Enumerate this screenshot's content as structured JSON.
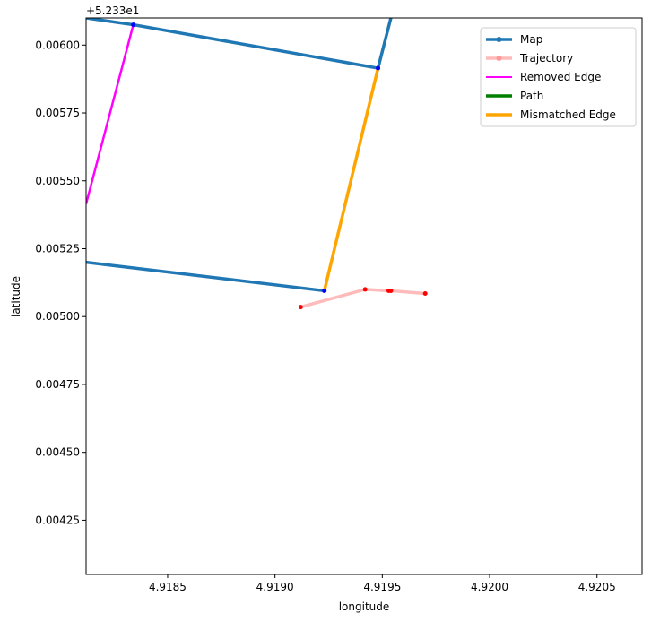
{
  "chart_data": {
    "type": "line",
    "xlabel": "longitude",
    "ylabel": "latitude",
    "y_offset_label": "+5.233e1",
    "xlim": [
      4.91812,
      4.92071
    ],
    "ylim": [
      0.00405,
      0.0061
    ],
    "x_ticks": [
      4.9185,
      4.919,
      4.9195,
      4.92,
      4.9205
    ],
    "x_tick_labels": [
      "4.9185",
      "4.9190",
      "4.9195",
      "4.9200",
      "4.9205"
    ],
    "y_ticks": [
      0.00425,
      0.0045,
      0.00475,
      0.005,
      0.00525,
      0.0055,
      0.00575,
      0.006
    ],
    "y_tick_labels": [
      "0.00425",
      "0.00450",
      "0.00475",
      "0.00500",
      "0.00525",
      "0.00550",
      "0.00575",
      "0.00600"
    ],
    "grid": false,
    "legend_position": "top-right",
    "series": [
      {
        "name": "Map",
        "color": "#1f77b4",
        "segments": [
          [
            [
              4.91812,
              0.0061
            ],
            [
              4.91834,
              0.006075
            ],
            [
              4.91948,
              0.005915
            ],
            [
              4.91954,
              0.0061
            ]
          ],
          [
            [
              4.91812,
              0.0052
            ],
            [
              4.91923,
              0.005095
            ]
          ]
        ],
        "nodes": [
          [
            4.91834,
            0.006075
          ],
          [
            4.91948,
            0.005915
          ],
          [
            4.91923,
            0.005095
          ]
        ]
      },
      {
        "name": "Trajectory",
        "color": "#ffbbbb",
        "segments": [
          [
            [
              4.91912,
              0.005035
            ],
            [
              4.91942,
              0.0051
            ],
            [
              4.91953,
              0.005095
            ],
            [
              4.91954,
              0.005095
            ],
            [
              4.9197,
              0.005085
            ]
          ]
        ],
        "nodes": [
          [
            4.91912,
            0.005035
          ],
          [
            4.91942,
            0.0051
          ],
          [
            4.91953,
            0.005095
          ],
          [
            4.91954,
            0.005095
          ],
          [
            4.9197,
            0.005085
          ]
        ]
      },
      {
        "name": "Removed Edge",
        "color": "#ff00ff",
        "segments": [
          [
            [
              4.91812,
              0.005415
            ],
            [
              4.91834,
              0.006075
            ]
          ]
        ]
      },
      {
        "name": "Path",
        "color": "#008000",
        "segments": []
      },
      {
        "name": "Mismatched Edge",
        "color": "#ffa500",
        "segments": [
          [
            [
              4.91923,
              0.005095
            ],
            [
              4.91948,
              0.005915
            ]
          ]
        ]
      }
    ]
  }
}
